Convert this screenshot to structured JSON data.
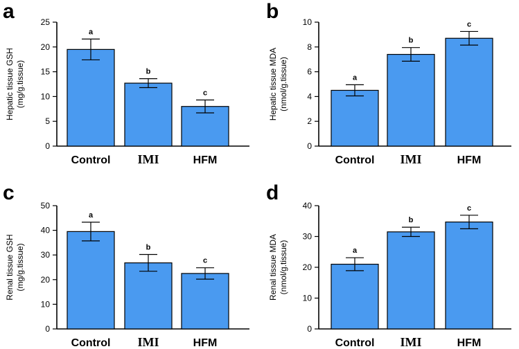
{
  "chart_data": [
    {
      "panel": "a",
      "type": "bar",
      "categories": [
        "Control",
        "IMI",
        "HFM"
      ],
      "values": [
        19.5,
        12.7,
        8.0
      ],
      "errors": [
        2.1,
        0.9,
        1.3
      ],
      "significance": [
        "a",
        "b",
        "c"
      ],
      "ylabel_line1": "Hepatic tissue GSH",
      "ylabel_line2": "(mg/g.tissue)",
      "ylim": [
        0,
        25
      ],
      "yticks": [
        0,
        5,
        10,
        15,
        20,
        25
      ]
    },
    {
      "panel": "b",
      "type": "bar",
      "categories": [
        "Control",
        "IMI",
        "HFM"
      ],
      "values": [
        4.5,
        7.4,
        8.7
      ],
      "errors": [
        0.45,
        0.55,
        0.55
      ],
      "significance": [
        "a",
        "b",
        "c"
      ],
      "ylabel_line1": "Hepatic tissue MDA",
      "ylabel_line2": "(nmol/g.tissue)",
      "ylim": [
        0,
        10
      ],
      "yticks": [
        0,
        2,
        4,
        6,
        8,
        10
      ]
    },
    {
      "panel": "c",
      "type": "bar",
      "categories": [
        "Control",
        "IMI",
        "HFM"
      ],
      "values": [
        39.5,
        26.8,
        22.5
      ],
      "errors": [
        3.8,
        3.4,
        2.3
      ],
      "significance": [
        "a",
        "b",
        "c"
      ],
      "ylabel_line1": "Renal tissue GSH",
      "ylabel_line2": "(mg/g.tissue)",
      "ylim": [
        0,
        50
      ],
      "yticks": [
        0,
        10,
        20,
        30,
        40,
        50
      ]
    },
    {
      "panel": "d",
      "type": "bar",
      "categories": [
        "Control",
        "IMI",
        "HFM"
      ],
      "values": [
        21.0,
        31.5,
        34.7
      ],
      "errors": [
        2.1,
        1.5,
        2.2
      ],
      "significance": [
        "a",
        "b",
        "c"
      ],
      "ylabel_line1": "Renal tissue MDA",
      "ylabel_line2": "(nmol/g.tissue)",
      "ylim": [
        0,
        40
      ],
      "yticks": [
        0,
        10,
        20,
        30,
        40
      ]
    }
  ],
  "colors": {
    "bar": "#4a9af0",
    "axis": "#000000"
  }
}
